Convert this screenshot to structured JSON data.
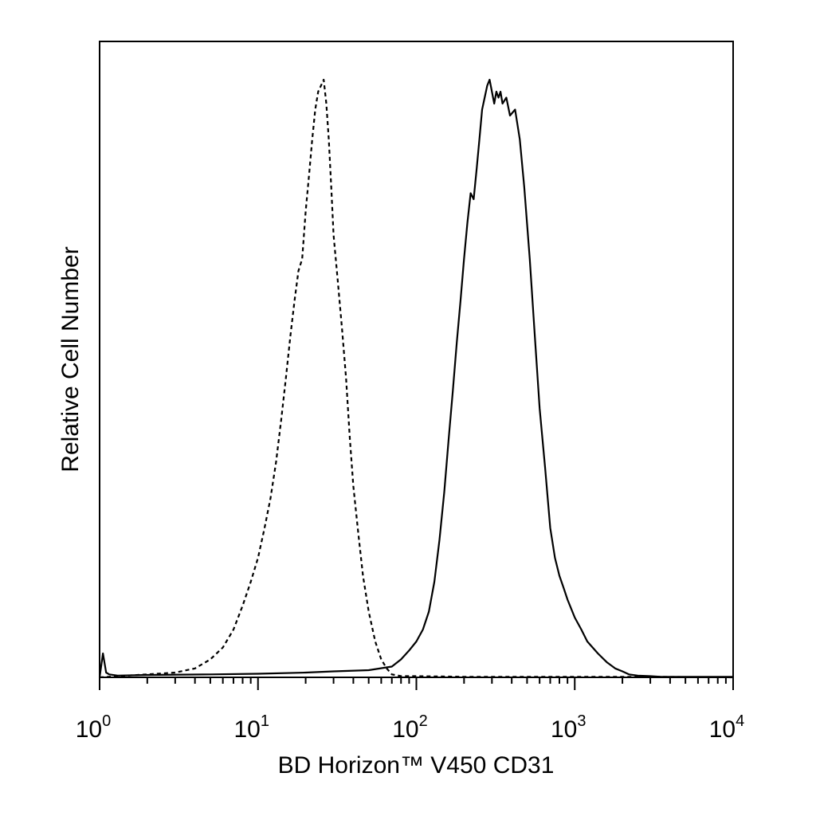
{
  "chart_data": {
    "type": "line",
    "title": "",
    "xlabel": "BD Horizon™ V450 CD31",
    "ylabel": "Relative Cell Number",
    "xscale": "log",
    "xlim": [
      1,
      10000
    ],
    "ylim": [
      0,
      100
    ],
    "x_ticks": [
      {
        "base": "10",
        "exp": "0",
        "value": 1
      },
      {
        "base": "10",
        "exp": "1",
        "value": 10
      },
      {
        "base": "10",
        "exp": "2",
        "value": 100
      },
      {
        "base": "10",
        "exp": "3",
        "value": 1000
      },
      {
        "base": "10",
        "exp": "4",
        "value": 10000
      }
    ],
    "grid": false,
    "legend": "none",
    "series": [
      {
        "style": "dashed",
        "color": "#000000",
        "x": [
          1.0,
          1.5,
          2.0,
          3.0,
          4.0,
          5.0,
          6.0,
          7.0,
          8.0,
          9.0,
          10.0,
          11.0,
          12.0,
          13.0,
          14.0,
          15.0,
          16.0,
          17.0,
          18.0,
          19.0,
          20.0,
          21.0,
          22.0,
          23.0,
          24.0,
          25.0,
          26.0,
          27.0,
          28.0,
          29.0,
          30.0,
          32.0,
          34.0,
          36.0,
          38.0,
          40.0,
          43.0,
          46.0,
          50.0,
          55.0,
          60.0,
          65.0,
          70.0,
          80.0,
          100.0,
          200.0,
          500.0,
          1000.0,
          3000.0,
          10000.0
        ],
        "y": [
          0.0,
          0.3,
          0.5,
          0.8,
          1.5,
          3.0,
          5.0,
          8.0,
          12.0,
          16.0,
          20.0,
          25.0,
          30.0,
          36.0,
          43.0,
          50.0,
          57.0,
          63.0,
          68.0,
          70.0,
          78.0,
          84.0,
          90.0,
          95.0,
          98.0,
          99.0,
          100.0,
          96.0,
          90.0,
          82.0,
          74.0,
          66.0,
          58.0,
          50.0,
          40.0,
          32.0,
          24.0,
          17.0,
          11.0,
          6.0,
          3.0,
          1.5,
          0.5,
          0.2,
          0.2,
          0.1,
          0.1,
          0.1,
          0.1,
          0.0
        ]
      },
      {
        "style": "solid",
        "color": "#000000",
        "x": [
          1.0,
          1.05,
          1.1,
          1.15,
          1.3,
          2.0,
          5.0,
          10.0,
          20.0,
          30.0,
          50.0,
          70.0,
          80.0,
          90.0,
          100.0,
          110.0,
          120.0,
          130.0,
          140.0,
          150.0,
          160.0,
          170.0,
          180.0,
          190.0,
          200.0,
          210.0,
          220.0,
          230.0,
          240.0,
          250.0,
          260.0,
          270.0,
          280.0,
          290.0,
          300.0,
          310.0,
          320.0,
          330.0,
          340.0,
          350.0,
          370.0,
          390.0,
          420.0,
          450.0,
          480.0,
          520.0,
          560.0,
          600.0,
          650.0,
          700.0,
          750.0,
          800.0,
          850.0,
          900.0,
          1000.0,
          1100.0,
          1200.0,
          1400.0,
          1600.0,
          1800.0,
          2000.0,
          2200.0,
          2500.0,
          3000.0,
          3500.0,
          4000.0,
          10000.0
        ],
        "y": [
          0.0,
          4.0,
          0.8,
          0.5,
          0.3,
          0.4,
          0.5,
          0.6,
          0.8,
          1.0,
          1.2,
          1.8,
          3.0,
          4.5,
          6.0,
          8.0,
          11.0,
          16.0,
          23.0,
          31.0,
          40.0,
          48.0,
          56.0,
          63.0,
          70.0,
          76.0,
          81.0,
          80.0,
          85.0,
          90.0,
          95.0,
          97.0,
          99.0,
          100.0,
          98.0,
          96.0,
          98.0,
          97.0,
          98.0,
          96.0,
          97.0,
          94.0,
          95.0,
          90.0,
          82.0,
          70.0,
          57.0,
          45.0,
          35.0,
          25.0,
          20.0,
          17.0,
          15.0,
          13.0,
          10.0,
          8.0,
          6.0,
          4.0,
          2.5,
          1.5,
          1.0,
          0.5,
          0.3,
          0.2,
          0.1,
          0.1,
          0.1
        ]
      }
    ]
  }
}
